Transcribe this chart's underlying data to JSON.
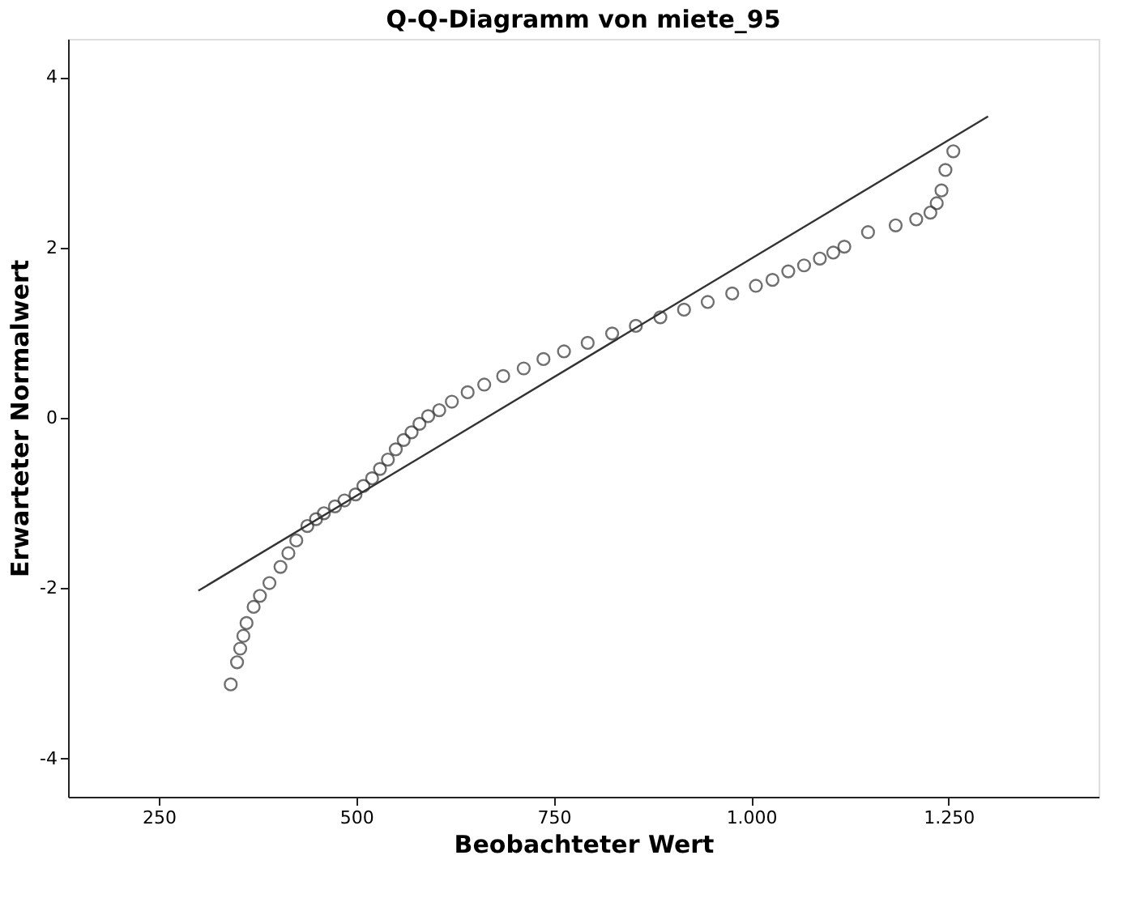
{
  "chart_data": {
    "type": "scatter",
    "title": "Q-Q-Diagramm von miete_95",
    "xlabel": "Beobachteter Wert",
    "ylabel": "Erwarteter Normalwert",
    "xlim": [
      135,
      1440
    ],
    "ylim": [
      -4.45,
      4.45
    ],
    "xticks": [
      250,
      500,
      750,
      {
        "value": 1000,
        "label": "1.000"
      },
      {
        "value": 1250,
        "label": "1.250"
      }
    ],
    "yticks": [
      -4,
      -2,
      0,
      2,
      4
    ],
    "grid": false,
    "series": [
      {
        "color": "#333333",
        "marker": "circle",
        "x": [
          341,
          349,
          353,
          357,
          361,
          370,
          378,
          390,
          404,
          414,
          424,
          438,
          449,
          459,
          473,
          485,
          499,
          509,
          520,
          530,
          540,
          550,
          560,
          570,
          580,
          591,
          605,
          621,
          641,
          662,
          686,
          712,
          737,
          763,
          793,
          824,
          854,
          885,
          915,
          945,
          976,
          1006,
          1027,
          1047,
          1067,
          1087,
          1104,
          1118,
          1148,
          1183,
          1209,
          1227,
          1235,
          1241,
          1246,
          1256
        ],
        "values": [
          -3.13,
          -2.87,
          -2.71,
          -2.56,
          -2.41,
          -2.22,
          -2.09,
          -1.94,
          -1.75,
          -1.59,
          -1.44,
          -1.27,
          -1.19,
          -1.12,
          -1.04,
          -0.97,
          -0.9,
          -0.8,
          -0.71,
          -0.6,
          -0.49,
          -0.37,
          -0.26,
          -0.17,
          -0.07,
          0.02,
          0.09,
          0.19,
          0.3,
          0.39,
          0.49,
          0.58,
          0.69,
          0.78,
          0.88,
          0.99,
          1.08,
          1.18,
          1.27,
          1.36,
          1.46,
          1.55,
          1.62,
          1.72,
          1.79,
          1.87,
          1.94,
          2.01,
          2.18,
          2.26,
          2.33,
          2.41,
          2.52,
          2.67,
          2.91,
          3.13
        ]
      },
      {
        "type": "line",
        "color": "#333333",
        "x": [
          300,
          1300
        ],
        "values": [
          -2.03,
          3.54
        ]
      }
    ]
  }
}
